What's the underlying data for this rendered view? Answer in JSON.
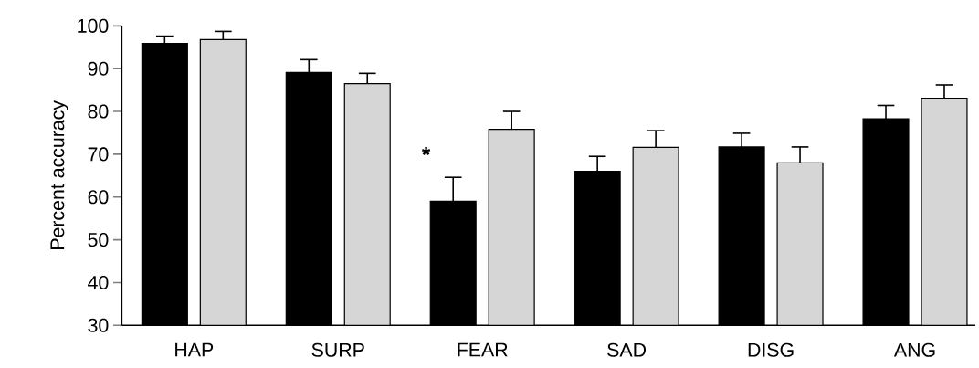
{
  "chart_data": {
    "type": "bar",
    "ylabel": "Percent accuracy",
    "categories": [
      "HAP",
      "SURP",
      "FEAR",
      "SAD",
      "DISG",
      "ANG"
    ],
    "series": [
      {
        "color": "#000000",
        "values": [
          95.9,
          89.1,
          59.0,
          66.0,
          71.7,
          78.3
        ],
        "errors": [
          1.7,
          3.0,
          5.6,
          3.5,
          3.2,
          3.1
        ]
      },
      {
        "color": "#d6d6d6",
        "values": [
          96.8,
          86.5,
          75.8,
          71.6,
          68.0,
          83.1
        ],
        "errors": [
          1.9,
          2.4,
          4.2,
          3.9,
          3.7,
          3.1
        ]
      }
    ],
    "ylim": [
      30,
      100
    ],
    "yticks": [
      30,
      40,
      50,
      60,
      70,
      80,
      90,
      100
    ],
    "annotations": [
      "*"
    ],
    "grid": false,
    "legend": false
  }
}
